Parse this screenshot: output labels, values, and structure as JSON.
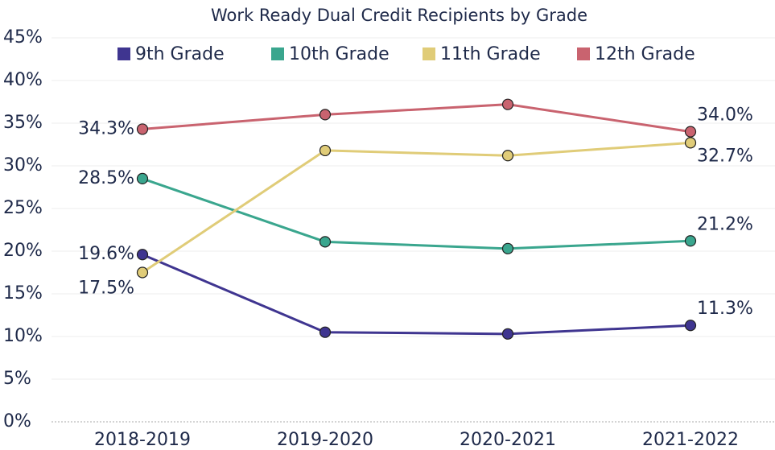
{
  "chart_data": {
    "type": "line",
    "title": "Work Ready Dual Credit Recipients by Grade",
    "categories": [
      "2018-2019",
      "2019-2020",
      "2020-2021",
      "2021-2022"
    ],
    "series": [
      {
        "name": "9th Grade",
        "color": "#3f3590",
        "values": [
          19.6,
          10.5,
          10.3,
          11.3
        ],
        "value_labels": [
          "19.6%",
          null,
          null,
          "11.3%"
        ]
      },
      {
        "name": "10th Grade",
        "color": "#3aa68e",
        "values": [
          28.5,
          21.1,
          20.3,
          21.2
        ],
        "value_labels": [
          "28.5%",
          null,
          null,
          "21.2%"
        ]
      },
      {
        "name": "11th Grade",
        "color": "#e0cc78",
        "values": [
          17.5,
          31.8,
          31.2,
          32.7
        ],
        "value_labels": [
          "17.5%",
          null,
          null,
          "32.7%"
        ]
      },
      {
        "name": "12th Grade",
        "color": "#c9636f",
        "values": [
          34.3,
          36.0,
          37.2,
          34.0
        ],
        "value_labels": [
          "34.3%",
          null,
          null,
          "34.0%"
        ]
      }
    ],
    "ylim": [
      0,
      45
    ],
    "yticks": [
      {
        "value": 0,
        "label": "0%"
      },
      {
        "value": 5,
        "label": "5%"
      },
      {
        "value": 10,
        "label": "10%"
      },
      {
        "value": 15,
        "label": "15%"
      },
      {
        "value": 20,
        "label": "20%"
      },
      {
        "value": 25,
        "label": "25%"
      },
      {
        "value": 30,
        "label": "30%"
      },
      {
        "value": 35,
        "label": "35%"
      },
      {
        "value": 40,
        "label": "40%"
      },
      {
        "value": 45,
        "label": "45%"
      }
    ],
    "grid": true,
    "legend": "top"
  }
}
